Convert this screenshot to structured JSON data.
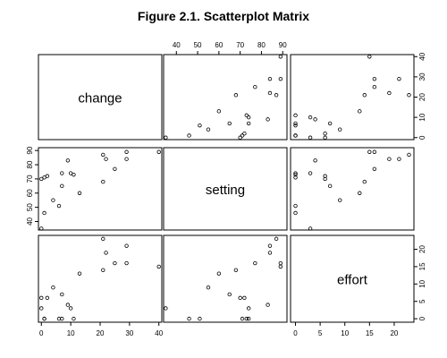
{
  "title": "Figure 2.1. Scatterplot Matrix",
  "chart_data": {
    "type": "scatter-matrix",
    "title": "Figure 2.1. Scatterplot Matrix",
    "variables": [
      "change",
      "setting",
      "effort"
    ],
    "axes": {
      "change": {
        "ticks": [
          0,
          10,
          20,
          30,
          40
        ],
        "range": [
          -1,
          41
        ]
      },
      "setting": {
        "ticks": [
          40,
          50,
          60,
          70,
          80,
          90
        ],
        "range": [
          34,
          92
        ]
      },
      "effort": {
        "ticks": [
          0,
          5,
          10,
          15,
          20
        ],
        "range": [
          -1,
          24
        ]
      }
    },
    "observations": [
      {
        "change": 1,
        "setting": 46,
        "effort": 0
      },
      {
        "change": 10,
        "setting": 74,
        "effort": 3
      },
      {
        "change": 29,
        "setting": 89,
        "effort": 16
      },
      {
        "change": 25,
        "setting": 77,
        "effort": 16
      },
      {
        "change": 29,
        "setting": 84,
        "effort": 21
      },
      {
        "change": 40,
        "setting": 89,
        "effort": 15
      },
      {
        "change": 21,
        "setting": 68,
        "effort": 14
      },
      {
        "change": 0,
        "setting": 70,
        "effort": 6
      },
      {
        "change": 13,
        "setting": 60,
        "effort": 13
      },
      {
        "change": 4,
        "setting": 55,
        "effort": 9
      },
      {
        "change": 7,
        "setting": 65,
        "effort": 7
      },
      {
        "change": 21,
        "setting": 87,
        "effort": 23
      },
      {
        "change": 9,
        "setting": 83,
        "effort": 4
      },
      {
        "change": 7,
        "setting": 74,
        "effort": 0
      },
      {
        "change": 22,
        "setting": 84,
        "effort": 19
      },
      {
        "change": 0,
        "setting": 35,
        "effort": 3
      },
      {
        "change": 11,
        "setting": 73,
        "effort": 0
      },
      {
        "change": 6,
        "setting": 51,
        "effort": 0
      },
      {
        "change": 2,
        "setting": 72,
        "effort": 6
      },
      {
        "change": 1,
        "setting": 71,
        "effort": 0
      }
    ]
  }
}
